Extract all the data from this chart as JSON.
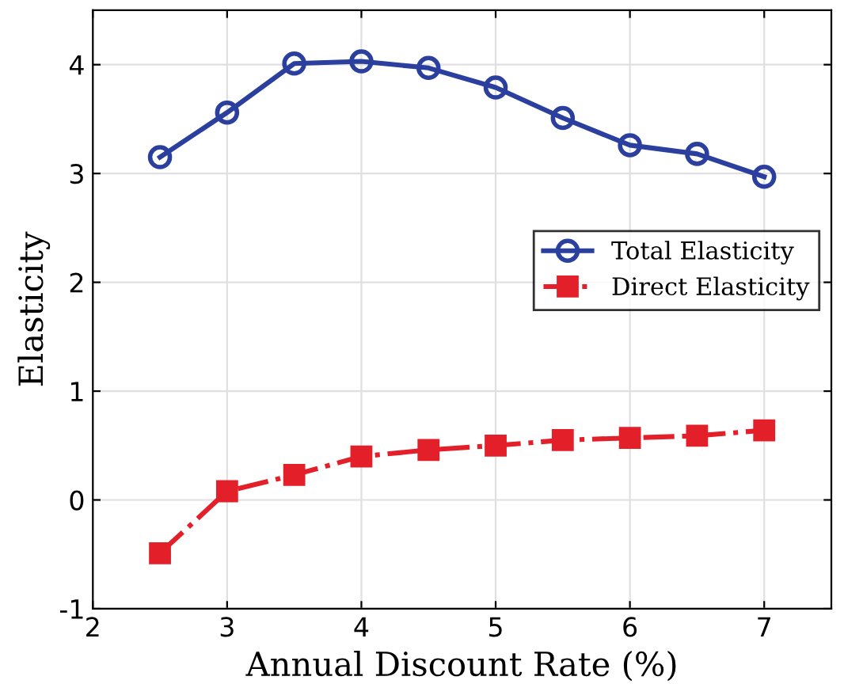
{
  "chart_data": {
    "type": "line",
    "xlabel": "Annual Discount Rate (%)",
    "ylabel": "Elasticity",
    "x": [
      2.5,
      3,
      3.5,
      4,
      4.5,
      5,
      5.5,
      6,
      6.5,
      7
    ],
    "series": [
      {
        "name": "Total Elasticity",
        "color": "#2b3f9e",
        "marker": "circle",
        "line_style": "solid",
        "values": [
          3.15,
          3.56,
          4.01,
          4.03,
          3.97,
          3.79,
          3.51,
          3.26,
          3.18,
          2.97
        ]
      },
      {
        "name": "Direct Elasticity",
        "color": "#e3202a",
        "marker": "square",
        "line_style": "dashdot",
        "values": [
          -0.49,
          0.08,
          0.23,
          0.4,
          0.46,
          0.5,
          0.55,
          0.57,
          0.59,
          0.64
        ]
      }
    ],
    "xlim": [
      2,
      7.5
    ],
    "ylim": [
      -1,
      4.5
    ],
    "xticks": [
      2,
      3,
      4,
      5,
      6,
      7
    ],
    "yticks": [
      -1,
      0,
      1,
      2,
      3,
      4
    ],
    "grid": true,
    "legend": "center right"
  }
}
